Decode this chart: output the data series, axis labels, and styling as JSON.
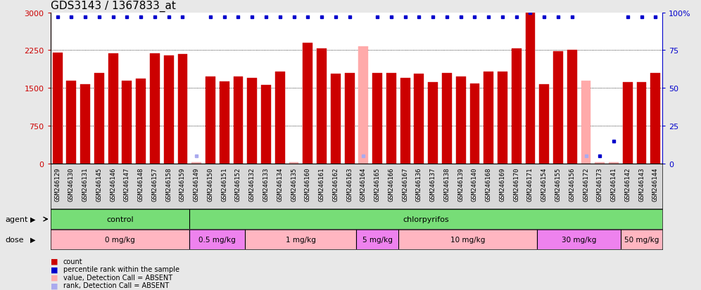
{
  "title": "GDS3143 / 1367833_at",
  "samples": [
    "GSM246129",
    "GSM246130",
    "GSM246131",
    "GSM246145",
    "GSM246146",
    "GSM246147",
    "GSM246148",
    "GSM246157",
    "GSM246158",
    "GSM246159",
    "GSM246149",
    "GSM246150",
    "GSM246151",
    "GSM246152",
    "GSM246132",
    "GSM246133",
    "GSM246134",
    "GSM246135",
    "GSM246160",
    "GSM246161",
    "GSM246162",
    "GSM246163",
    "GSM246164",
    "GSM246165",
    "GSM246166",
    "GSM246167",
    "GSM246136",
    "GSM246137",
    "GSM246138",
    "GSM246139",
    "GSM246140",
    "GSM246168",
    "GSM246169",
    "GSM246170",
    "GSM246171",
    "GSM246154",
    "GSM246155",
    "GSM246156",
    "GSM246172",
    "GSM246173",
    "GSM246141",
    "GSM246142",
    "GSM246143",
    "GSM246144"
  ],
  "bar_values": [
    2200,
    1650,
    1580,
    1800,
    2190,
    1650,
    1680,
    2180,
    2150,
    2170,
    25,
    1720,
    1630,
    1720,
    1700,
    1560,
    1820,
    25,
    2400,
    2280,
    1780,
    1790,
    2320,
    1790,
    1790,
    1700,
    1780,
    1620,
    1800,
    1720,
    1590,
    1820,
    1820,
    2280,
    3000,
    1580,
    2230,
    2260,
    1650,
    25,
    25,
    1620,
    1620,
    1800
  ],
  "percentile_values": [
    97,
    97,
    97,
    97,
    97,
    97,
    97,
    97,
    97,
    97,
    5,
    97,
    97,
    97,
    97,
    97,
    97,
    97,
    97,
    97,
    97,
    97,
    5,
    97,
    97,
    97,
    97,
    97,
    97,
    97,
    97,
    97,
    97,
    97,
    100,
    97,
    97,
    97,
    5,
    5,
    15,
    97,
    97,
    97
  ],
  "absent_bar": [
    false,
    false,
    false,
    false,
    false,
    false,
    false,
    false,
    false,
    false,
    true,
    false,
    false,
    false,
    false,
    false,
    false,
    true,
    false,
    false,
    false,
    false,
    true,
    false,
    false,
    false,
    false,
    false,
    false,
    false,
    false,
    false,
    false,
    false,
    false,
    false,
    false,
    false,
    true,
    true,
    true,
    false,
    false,
    false
  ],
  "absent_rank": [
    false,
    false,
    false,
    false,
    false,
    false,
    false,
    false,
    false,
    false,
    true,
    false,
    false,
    false,
    false,
    false,
    false,
    false,
    false,
    false,
    false,
    false,
    true,
    false,
    false,
    false,
    false,
    false,
    false,
    false,
    false,
    false,
    false,
    false,
    false,
    false,
    false,
    false,
    true,
    false,
    false,
    false,
    false,
    false
  ],
  "dose_groups": [
    {
      "label": "0 mg/kg",
      "start": 0,
      "end": 9,
      "color": "#ffb6c1"
    },
    {
      "label": "0.5 mg/kg",
      "start": 10,
      "end": 13,
      "color": "#ee82ee"
    },
    {
      "label": "1 mg/kg",
      "start": 14,
      "end": 21,
      "color": "#ffb6c1"
    },
    {
      "label": "5 mg/kg",
      "start": 22,
      "end": 24,
      "color": "#ee82ee"
    },
    {
      "label": "10 mg/kg",
      "start": 25,
      "end": 34,
      "color": "#ffb6c1"
    },
    {
      "label": "30 mg/kg",
      "start": 35,
      "end": 40,
      "color": "#ee82ee"
    },
    {
      "label": "50 mg/kg",
      "start": 41,
      "end": 43,
      "color": "#ffb6c1"
    }
  ],
  "ylim_left": [
    0,
    3000
  ],
  "ylim_right": [
    0,
    100
  ],
  "yticks_left": [
    0,
    750,
    1500,
    2250,
    3000
  ],
  "yticks_right": [
    0,
    25,
    50,
    75,
    100
  ],
  "bar_color": "#cc0000",
  "absent_bar_color": "#ffaaaa",
  "percentile_color": "#0000cc",
  "absent_rank_color": "#aaaaee",
  "background_color": "#e8e8e8",
  "plot_bg_color": "#ffffff",
  "xticklabel_bg": "#d8d8d8",
  "agent_color": "#77dd77",
  "title_fontsize": 11,
  "tick_fontsize": 6.5,
  "label_fontsize": 8,
  "agent_fontsize": 8,
  "dose_fontsize": 7.5
}
